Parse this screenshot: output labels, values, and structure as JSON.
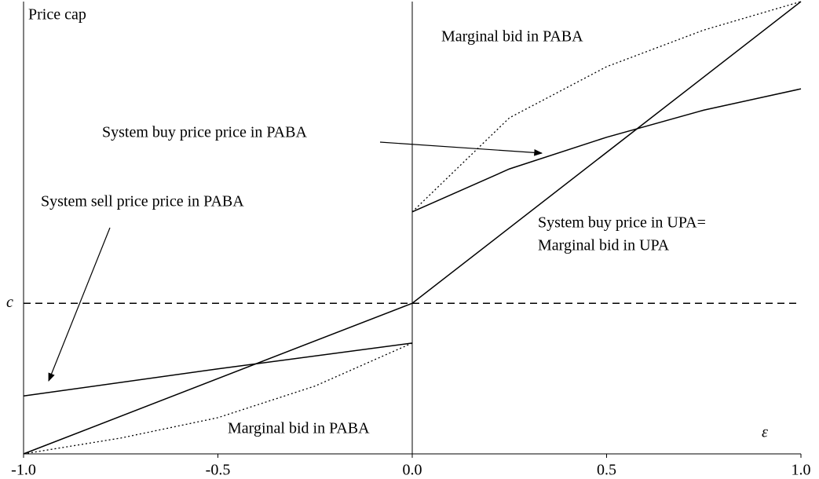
{
  "chart_data": {
    "type": "line",
    "xlim": [
      -1,
      1
    ],
    "ylim": [
      0,
      1
    ],
    "xticks": [
      {
        "value": -1,
        "label": "-1.0"
      },
      -0.5,
      {
        "value": 0,
        "label": "0.0"
      },
      0.5,
      {
        "value": 1,
        "label": "1.0"
      }
    ],
    "top_label": "Price cap",
    "x_label": "ε",
    "reference_line": {
      "label": "c",
      "value": 0.333
    },
    "series": [
      {
        "name": "System buy price in UPA= Marginal bid in UPA",
        "color": "#000000",
        "style": "solid",
        "x": [
          -1,
          0,
          1
        ],
        "values": [
          0,
          0.333,
          1
        ]
      },
      {
        "name": "System sell price price in PABA",
        "color": "#000000",
        "style": "solid",
        "x": [
          -1,
          -0.5,
          0
        ],
        "values": [
          0.128,
          0.188,
          0.245
        ]
      },
      {
        "name": "System buy price price in PABA",
        "color": "#000000",
        "style": "solid",
        "x": [
          0,
          0.25,
          0.5,
          0.75,
          1
        ],
        "values": [
          0.535,
          0.63,
          0.7,
          0.76,
          0.807
        ]
      },
      {
        "name": "Marginal bid in PABA",
        "color": "#000000",
        "style": "dotted",
        "x": [
          -1,
          -0.75,
          -0.5,
          -0.25,
          0,
          0,
          0,
          0.25,
          0.5,
          0.75,
          1
        ],
        "values": [
          0,
          0.035,
          0.08,
          0.15,
          0.245,
          null,
          0.535,
          0.743,
          0.856,
          0.937,
          1
        ]
      }
    ],
    "annotations": [
      "Marginal bid in PABA",
      "System buy price price in PABA",
      "System sell price price in PABA",
      "System buy price in UPA=",
      "Marginal bid in UPA",
      "Marginal bid in PABA"
    ]
  }
}
